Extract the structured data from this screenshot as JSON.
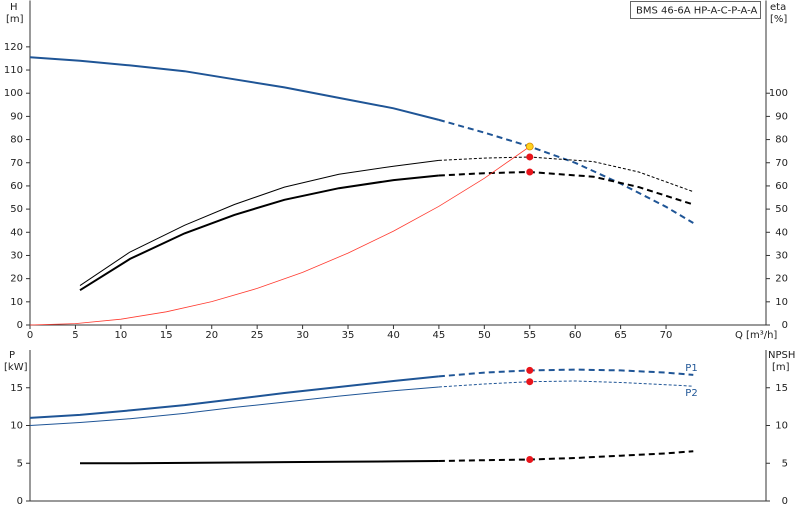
{
  "chart_data": [
    {
      "type": "line",
      "title": "BMS 46-6A HP-A-C-P-A-A",
      "ylabel": "H",
      "yunit": "[m]",
      "y2label": "eta",
      "y2unit": "[%]",
      "xlabel": "Q [m³/h]",
      "xlim": [
        0,
        81
      ],
      "xticks": [
        0,
        5,
        10,
        15,
        20,
        25,
        30,
        35,
        40,
        45,
        50,
        55,
        60,
        65,
        70
      ],
      "ylim": [
        0,
        140
      ],
      "yticks": [
        0,
        10,
        20,
        30,
        40,
        50,
        60,
        70,
        80,
        90,
        100,
        110,
        120
      ],
      "y2lim": [
        0,
        140
      ],
      "y2ticks": [
        0,
        10,
        20,
        30,
        40,
        50,
        60,
        70,
        80,
        90,
        100
      ],
      "series": [
        {
          "color": "#1f5596",
          "width": 2,
          "dashed_from": 45,
          "x": [
            0,
            5.5,
            11,
            17,
            22.5,
            28,
            34,
            40,
            45,
            50,
            55,
            60,
            65,
            70,
            73
          ],
          "values": [
            115.5,
            114,
            112,
            109.5,
            106,
            102.5,
            98,
            93.5,
            88.5,
            83,
            77,
            70,
            61,
            51,
            44
          ]
        },
        {
          "color": "#000000",
          "width": 1,
          "dashed_from": 45,
          "axis": "y2",
          "x": [
            5.5,
            11,
            17,
            22.5,
            28,
            34,
            40,
            45,
            50,
            55,
            62,
            67,
            73
          ],
          "values": [
            17,
            31.5,
            43,
            52,
            59.5,
            65,
            68.5,
            71,
            72,
            72.5,
            70.5,
            66,
            57.5
          ]
        },
        {
          "color": "#000000",
          "width": 2,
          "dashed_from": 45,
          "axis": "y2",
          "x": [
            5.5,
            11,
            17,
            22.5,
            28,
            34,
            40,
            45,
            50,
            55,
            62,
            67,
            73
          ],
          "values": [
            15,
            28.5,
            39.5,
            47.5,
            54,
            59,
            62.5,
            64.5,
            65.5,
            66,
            64,
            59.5,
            52
          ]
        },
        {
          "color": "#ff3b30",
          "width": 0.8,
          "x": [
            0,
            5,
            10,
            15,
            20,
            25,
            30,
            35,
            40,
            45,
            50,
            55
          ],
          "values": [
            0,
            0.6,
            2.5,
            5.7,
            10.1,
            15.8,
            22.7,
            31,
            40.5,
            51.2,
            63.3,
            77
          ]
        }
      ],
      "points": [
        {
          "x": 55,
          "y": 77,
          "color": "#ffd21f"
        },
        {
          "x": 55,
          "y": 72.5,
          "color": "#e8141b"
        },
        {
          "x": 55,
          "y": 66,
          "color": "#e8141b"
        }
      ]
    },
    {
      "type": "line",
      "ylabel": "P",
      "yunit": "[kW]",
      "y2label": "NPSH",
      "y2unit": "[m]",
      "xlim": [
        0,
        81
      ],
      "ylim": [
        0,
        20
      ],
      "yticks": [
        0,
        5,
        10,
        15
      ],
      "y2lim": [
        0,
        20
      ],
      "y2ticks": [
        0,
        5,
        10,
        15
      ],
      "series": [
        {
          "name": "P1",
          "color": "#1f5596",
          "width": 2,
          "dashed_from": 45,
          "x": [
            0,
            5.5,
            11,
            17,
            22.5,
            28,
            34,
            40,
            45,
            50,
            55,
            60,
            65,
            70,
            73
          ],
          "values": [
            11,
            11.4,
            12,
            12.7,
            13.5,
            14.3,
            15.1,
            15.9,
            16.5,
            17,
            17.3,
            17.4,
            17.3,
            17,
            16.7
          ]
        },
        {
          "name": "P2",
          "color": "#1f5596",
          "width": 1,
          "dashed_from": 45,
          "x": [
            0,
            5.5,
            11,
            17,
            22.5,
            28,
            34,
            40,
            45,
            50,
            55,
            60,
            65,
            70,
            73
          ],
          "values": [
            10,
            10.4,
            10.9,
            11.6,
            12.4,
            13.1,
            13.9,
            14.6,
            15.1,
            15.5,
            15.8,
            15.9,
            15.7,
            15.4,
            15.2
          ]
        },
        {
          "color": "#000000",
          "width": 2,
          "dashed_from": 45,
          "axis": "y2",
          "x": [
            5.5,
            11,
            17,
            22.5,
            28,
            34,
            40,
            45,
            50,
            55,
            60,
            65,
            70,
            73
          ],
          "values": [
            5,
            5,
            5.05,
            5.1,
            5.15,
            5.2,
            5.25,
            5.3,
            5.4,
            5.5,
            5.7,
            6,
            6.3,
            6.6
          ]
        }
      ],
      "points": [
        {
          "x": 55,
          "y": 17.3,
          "color": "#e8141b"
        },
        {
          "x": 55,
          "y": 15.8,
          "color": "#e8141b"
        },
        {
          "x": 55,
          "y": 5.5,
          "color": "#e8141b"
        }
      ]
    }
  ]
}
